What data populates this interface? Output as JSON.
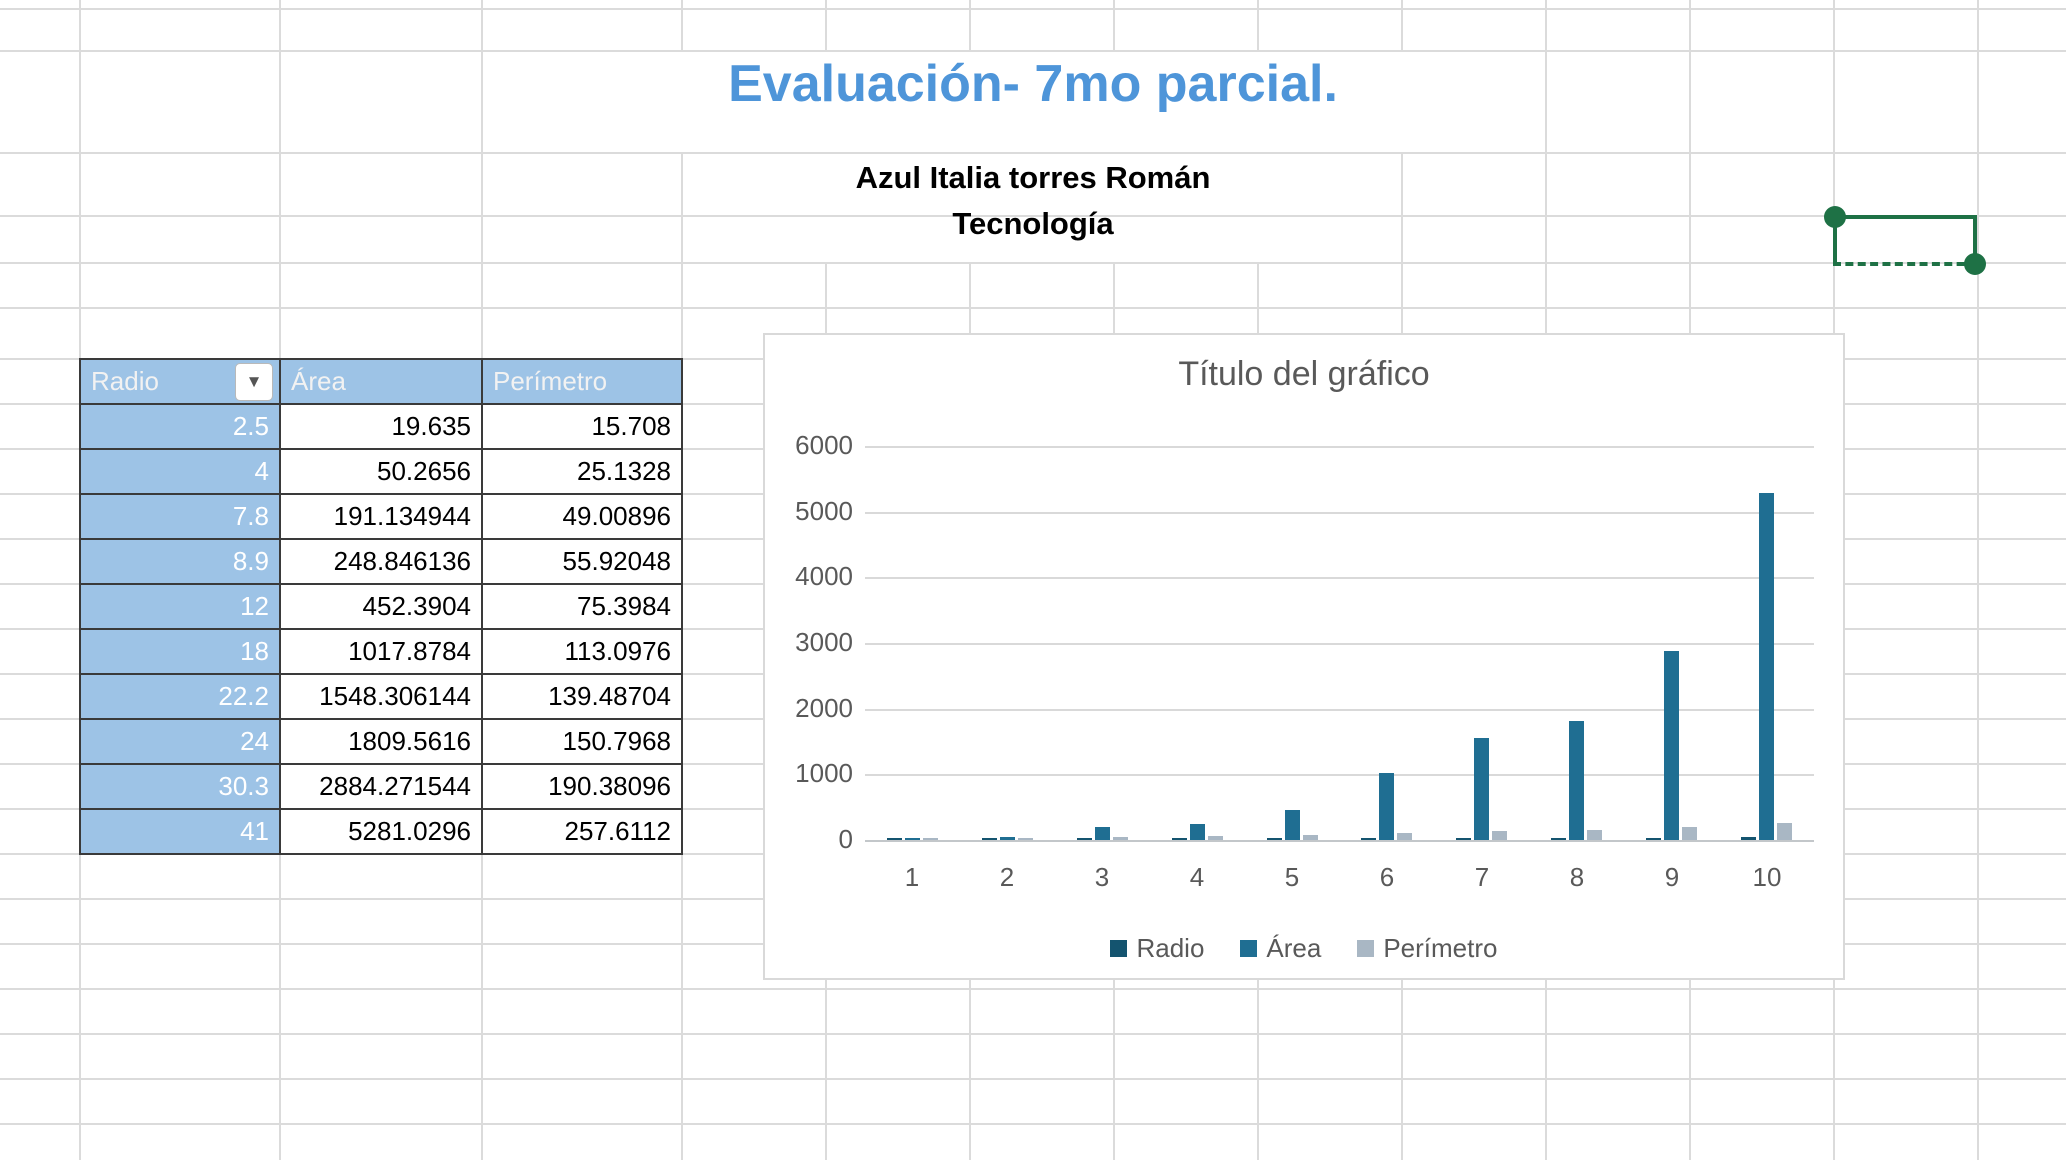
{
  "worksheet_title": "Evaluación- 7mo parcial.",
  "student": {
    "name": "Azul Italia torres Román",
    "subject": "Tecnología"
  },
  "table": {
    "headers": [
      "Radio",
      "Área",
      "Perímetro"
    ],
    "filter_icon": "▼",
    "rows": [
      [
        "2.5",
        "19.635",
        "15.708"
      ],
      [
        "4",
        "50.2656",
        "25.1328"
      ],
      [
        "7.8",
        "191.134944",
        "49.00896"
      ],
      [
        "8.9",
        "248.846136",
        "55.92048"
      ],
      [
        "12",
        "452.3904",
        "75.3984"
      ],
      [
        "18",
        "1017.8784",
        "113.0976"
      ],
      [
        "22.2",
        "1548.306144",
        "139.48704"
      ],
      [
        "24",
        "1809.5616",
        "150.7968"
      ],
      [
        "30.3",
        "2884.271544",
        "190.38096"
      ],
      [
        "41",
        "5281.0296",
        "257.6112"
      ]
    ]
  },
  "chart_data": {
    "type": "bar",
    "title": "Título del gráfico",
    "categories": [
      "1",
      "2",
      "3",
      "4",
      "5",
      "6",
      "7",
      "8",
      "9",
      "10"
    ],
    "series": [
      {
        "name": "Radio",
        "color": "#14546f",
        "values": [
          2.5,
          4,
          7.8,
          8.9,
          12,
          18,
          22.2,
          24,
          30.3,
          41
        ]
      },
      {
        "name": "Área",
        "color": "#1f6e92",
        "values": [
          19.635,
          50.2656,
          191.134944,
          248.846136,
          452.3904,
          1017.8784,
          1548.306144,
          1809.5616,
          2884.271544,
          5281.0296
        ]
      },
      {
        "name": "Perímetro",
        "color": "#a9b7c4",
        "values": [
          15.708,
          25.1328,
          49.00896,
          55.92048,
          75.3984,
          113.0976,
          139.48704,
          150.7968,
          190.38096,
          257.6112
        ]
      }
    ],
    "xlabel": "",
    "ylabel": "",
    "ylim": [
      0,
      6000
    ],
    "yticks": [
      0,
      1000,
      2000,
      3000,
      4000,
      5000,
      6000
    ],
    "grid": true,
    "legend_position": "bottom"
  },
  "colors": {
    "title_blue": "#4e95d9",
    "table_header_fill": "#9dc3e6",
    "table_border": "#3a3a3a",
    "selection_green": "#1e7145",
    "sheet_gridline": "#dbdbdb",
    "chart_text": "#595959",
    "chart_gridline": "#d9d9d9"
  }
}
